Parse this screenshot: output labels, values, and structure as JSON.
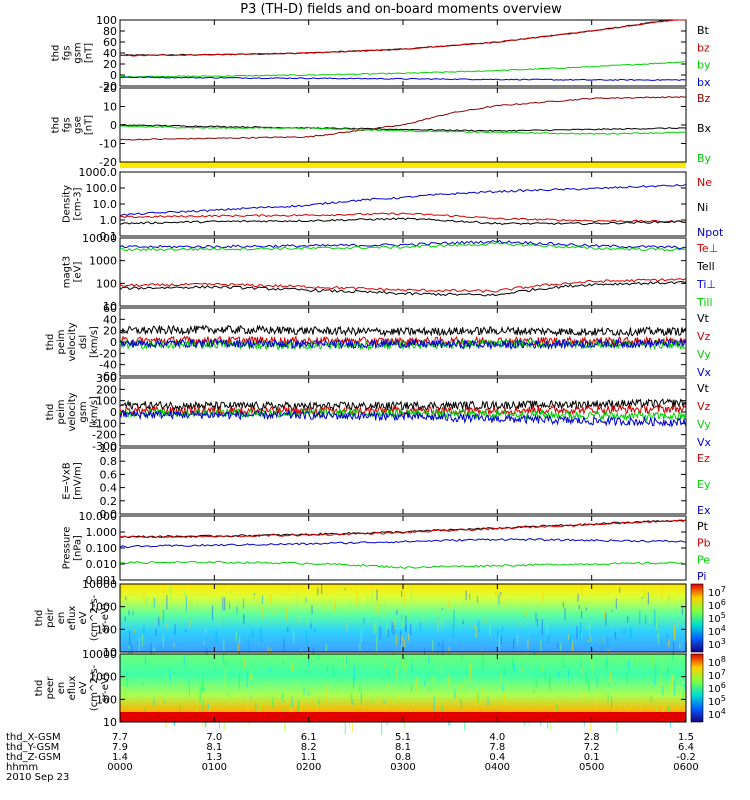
{
  "title": "P3 (TH-D) fields and on-board moments overview",
  "colors": {
    "black": "#000000",
    "red": "#d00000",
    "darkred": "#8b0000",
    "green": "#00d000",
    "blue": "#0000d0",
    "yellow": "#ffea00"
  },
  "chart_data": [
    {
      "type": "line",
      "ylabel_lines": [
        "thd",
        "fgs",
        "gsm",
        "[nT]"
      ],
      "yticks": [
        "100",
        "80",
        "60",
        "40",
        "20",
        "0",
        "-20"
      ],
      "ylim": [
        -20,
        100
      ],
      "series": [
        {
          "name": "Bt",
          "color": "#000000",
          "x": [
            0,
            1,
            2,
            3,
            4,
            5,
            6
          ],
          "values": [
            36,
            37,
            40,
            47,
            60,
            80,
            104
          ]
        },
        {
          "name": "bz",
          "color": "#d00000",
          "x": [
            0,
            1,
            2,
            3,
            4,
            5,
            6
          ],
          "values": [
            35,
            37,
            40,
            47,
            60,
            80,
            103
          ]
        },
        {
          "name": "by",
          "color": "#00d000",
          "x": [
            0,
            1,
            2,
            3,
            4,
            5,
            6
          ],
          "values": [
            -3,
            -2,
            0,
            3,
            8,
            15,
            24
          ]
        },
        {
          "name": "bx",
          "color": "#0000d0",
          "x": [
            0,
            1,
            2,
            3,
            4,
            5,
            6
          ],
          "values": [
            -4,
            -5,
            -6,
            -7,
            -8,
            -9,
            -9
          ]
        }
      ]
    },
    {
      "type": "line",
      "ylabel_lines": [
        "thd",
        "fgs",
        "gse",
        "[nT]"
      ],
      "yticks": [
        "20",
        "10",
        "0",
        "-10",
        "-20"
      ],
      "ylim": [
        -25,
        25
      ],
      "series": [
        {
          "name": "Bz",
          "color": "#8b0000",
          "x": [
            0,
            1,
            2,
            3,
            3.5,
            4,
            5,
            6
          ],
          "values": [
            -10,
            -9,
            -8,
            0,
            8,
            13,
            18,
            19
          ]
        },
        {
          "name": "Bx",
          "color": "#000000",
          "x": [
            0,
            1,
            2,
            3,
            4,
            5,
            6
          ],
          "values": [
            0,
            -1,
            -2,
            -3,
            -4,
            -3,
            -2
          ]
        },
        {
          "name": "By",
          "color": "#00d000",
          "x": [
            0,
            1,
            2,
            3,
            4,
            5,
            6
          ],
          "values": [
            -1,
            -2,
            -2,
            -4,
            -5,
            -6,
            -5
          ]
        }
      ]
    },
    {
      "type": "log-line",
      "ylabel_lines": [
        "Density",
        "[cm-3]"
      ],
      "yticks": [
        "1000.0",
        "100.0",
        "10.0",
        "1.0",
        "0.1"
      ],
      "ylim": [
        0.1,
        1000
      ],
      "series": [
        {
          "name": "Ne",
          "color": "#d00000",
          "x": [
            0,
            1,
            2,
            3,
            4,
            5,
            6
          ],
          "values": [
            1.5,
            1.8,
            2.0,
            2.5,
            1.2,
            0.9,
            0.8
          ]
        },
        {
          "name": "Ni",
          "color": "#000000",
          "x": [
            0,
            1,
            2,
            3,
            4,
            5,
            6
          ],
          "values": [
            0.6,
            0.8,
            0.9,
            1.2,
            0.6,
            0.6,
            0.8
          ]
        },
        {
          "name": "Npot",
          "color": "#0000d0",
          "x": [
            0,
            1,
            2,
            3,
            4,
            5,
            6
          ],
          "values": [
            2,
            4,
            8,
            25,
            60,
            90,
            150
          ]
        }
      ]
    },
    {
      "type": "log-line",
      "ylabel_lines": [
        "magt3",
        "[eV]"
      ],
      "yticks": [
        "10000",
        "1000",
        "100",
        "10"
      ],
      "ylim": [
        10,
        10000
      ],
      "series": [
        {
          "name": "Te⊥",
          "color": "#d00000",
          "x": [
            0,
            1,
            2,
            3,
            4,
            5,
            6
          ],
          "values": [
            80,
            90,
            70,
            50,
            45,
            120,
            150
          ]
        },
        {
          "name": "Tell",
          "color": "#000000",
          "x": [
            0,
            1,
            2,
            3,
            4,
            5,
            6
          ],
          "values": [
            60,
            70,
            50,
            35,
            30,
            90,
            110
          ]
        },
        {
          "name": "Ti⊥",
          "color": "#0000d0",
          "x": [
            0,
            1,
            2,
            3,
            4,
            5,
            6
          ],
          "values": [
            4000,
            4200,
            4500,
            5000,
            7000,
            4500,
            3800
          ]
        },
        {
          "name": "Till",
          "color": "#00d000",
          "x": [
            0,
            1,
            2,
            3,
            4,
            5,
            6
          ],
          "values": [
            3000,
            3300,
            3500,
            4000,
            5500,
            3500,
            3000
          ]
        }
      ]
    },
    {
      "type": "line",
      "ylabel_lines": [
        "thd",
        "peim",
        "velocity",
        "dsl",
        "[km/s]"
      ],
      "yticks": [
        "60",
        "40",
        "20",
        "0",
        "-20",
        "-40",
        "-60"
      ],
      "ylim": [
        -60,
        60
      ],
      "series": [
        {
          "name": "Vt",
          "color": "#000000",
          "x": [
            0,
            1,
            2,
            3,
            4,
            5,
            6
          ],
          "values": [
            20,
            22,
            20,
            18,
            20,
            18,
            19
          ]
        },
        {
          "name": "Vz",
          "color": "#d00000",
          "x": [
            0,
            1,
            2,
            3,
            4,
            5,
            6
          ],
          "values": [
            2,
            3,
            2,
            1,
            2,
            2,
            1
          ]
        },
        {
          "name": "Vy",
          "color": "#00d000",
          "x": [
            0,
            1,
            2,
            3,
            4,
            5,
            6
          ],
          "values": [
            -5,
            -4,
            -6,
            -5,
            -3,
            -4,
            -5
          ]
        },
        {
          "name": "Vx",
          "color": "#0000d0",
          "x": [
            0,
            1,
            2,
            3,
            4,
            5,
            6
          ],
          "values": [
            -3,
            -2,
            -4,
            -3,
            -5,
            -3,
            -2
          ]
        }
      ]
    },
    {
      "type": "line",
      "ylabel_lines": [
        "thd",
        "peim",
        "velocity",
        "gsm",
        "[km/s]"
      ],
      "yticks": [
        "300",
        "200",
        "100",
        "0",
        "-100",
        "-200",
        "-300"
      ],
      "ylim": [
        -300,
        300
      ],
      "series": [
        {
          "name": "Vt",
          "color": "#000000",
          "x": [
            0,
            1,
            2,
            3,
            4,
            5,
            6
          ],
          "values": [
            60,
            55,
            50,
            55,
            60,
            70,
            80
          ]
        },
        {
          "name": "Vz",
          "color": "#d00000",
          "x": [
            0,
            1,
            2,
            3,
            4,
            5,
            6
          ],
          "values": [
            10,
            12,
            8,
            10,
            15,
            20,
            30
          ]
        },
        {
          "name": "Vy",
          "color": "#00d000",
          "x": [
            0,
            1,
            2,
            3,
            4,
            5,
            6
          ],
          "values": [
            -10,
            -8,
            -12,
            -10,
            -20,
            -30,
            -40
          ]
        },
        {
          "name": "Vx",
          "color": "#0000d0",
          "x": [
            0,
            1,
            2,
            3,
            4,
            5,
            6
          ],
          "values": [
            -20,
            -25,
            -30,
            -40,
            -60,
            -80,
            -90
          ]
        }
      ]
    },
    {
      "type": "line",
      "ylabel_lines": [
        "E=-VxB",
        "[mV/m]"
      ],
      "yticks": [
        "1.0",
        "0.8",
        "0.6",
        "0.4",
        "0.2",
        "0.0"
      ],
      "ylim": [
        0,
        1
      ],
      "series": [
        {
          "name": "Ez",
          "color": "#d00000",
          "x": [],
          "values": []
        },
        {
          "name": "Ey",
          "color": "#00d000",
          "x": [],
          "values": []
        },
        {
          "name": "Ex",
          "color": "#0000d0",
          "x": [],
          "values": []
        }
      ]
    },
    {
      "type": "log-line",
      "ylabel_lines": [
        "Pressure",
        "[nPa]"
      ],
      "yticks": [
        "10.000",
        "1.000",
        "0.100",
        "0.010",
        "0.001"
      ],
      "ylim": [
        0.001,
        10
      ],
      "series": [
        {
          "name": "Pt",
          "color": "#000000",
          "x": [
            0,
            1,
            2,
            3,
            4,
            5,
            6
          ],
          "values": [
            0.5,
            0.55,
            0.7,
            1.0,
            1.7,
            3.0,
            5.5
          ]
        },
        {
          "name": "Pb",
          "color": "#d00000",
          "x": [
            0,
            1,
            2,
            3,
            4,
            5,
            6
          ],
          "values": [
            0.48,
            0.52,
            0.65,
            0.9,
            1.6,
            2.9,
            5.4
          ]
        },
        {
          "name": "Pe",
          "color": "#00d000",
          "x": [
            0,
            1,
            2,
            3,
            4,
            5,
            6
          ],
          "values": [
            0.012,
            0.013,
            0.011,
            0.006,
            0.008,
            0.01,
            0.012
          ]
        },
        {
          "name": "Pi",
          "color": "#0000d0",
          "x": [
            0,
            1,
            2,
            3,
            4,
            5,
            6
          ],
          "values": [
            0.12,
            0.15,
            0.18,
            0.25,
            0.35,
            0.3,
            0.25
          ]
        }
      ]
    },
    {
      "type": "heatmap",
      "ylabel_lines": [
        "thd",
        "peir",
        "en",
        "eflux",
        "eV",
        "(cm^2-s-",
        "sr-eV)"
      ],
      "yticks": [
        "10000",
        "1000",
        "100",
        "10"
      ],
      "colorbar_ticks": [
        "10^7",
        "10^6",
        "10^5",
        "10^4",
        "10^3"
      ]
    },
    {
      "type": "heatmap",
      "ylabel_lines": [
        "thd",
        "peer",
        "en",
        "eflux",
        "eV",
        "(cm^2-s-",
        "sr-eV)"
      ],
      "yticks": [
        "10000",
        "1000",
        "100",
        "10"
      ],
      "colorbar_ticks": [
        "10^8",
        "10^7",
        "10^6",
        "10^5",
        "10^4"
      ]
    }
  ],
  "xaxis": {
    "rows": [
      {
        "label": "thd_X-GSM",
        "values": [
          "7.7",
          "7.0",
          "6.1",
          "5.1",
          "4.0",
          "2.8",
          "1.5"
        ]
      },
      {
        "label": "thd_Y-GSM",
        "values": [
          "7.9",
          "8.1",
          "8.2",
          "8.1",
          "7.8",
          "7.2",
          "6.4"
        ]
      },
      {
        "label": "thd_Z-GSM",
        "values": [
          "1.4",
          "1.3",
          "1.1",
          "0.8",
          "0.4",
          "0.1",
          "-0.2"
        ]
      },
      {
        "label": "hhmm",
        "values": [
          "0000",
          "0100",
          "0200",
          "0300",
          "0400",
          "0500",
          "0600"
        ]
      }
    ],
    "date": "2010 Sep 23"
  }
}
